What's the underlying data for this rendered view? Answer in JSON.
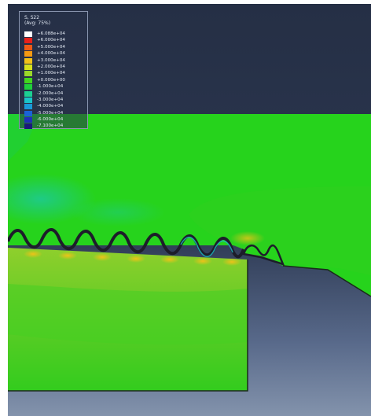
{
  "viewport": {
    "colors": {
      "background_top": "#252f45",
      "background_bottom": "#8393ac",
      "part_main": "#26d31c",
      "part_dark": "#159f14",
      "part_compression": "#7ccd2c",
      "part_tension": "#1cc8a8",
      "thread_profile": "#1d1d2a",
      "hot_spot": "#f2c218"
    }
  },
  "legend": {
    "variable": "S, S22",
    "averaging": "(Avg: 75%)",
    "entries": [
      {
        "value": "+6.088e+04",
        "color": "#ffffff"
      },
      {
        "value": "+6.000e+04",
        "color": "#e8201a"
      },
      {
        "value": "+5.000e+04",
        "color": "#ef5a16"
      },
      {
        "value": "+4.000e+04",
        "color": "#f49a12"
      },
      {
        "value": "+3.000e+04",
        "color": "#f2c218"
      },
      {
        "value": "+2.000e+04",
        "color": "#d6e11c"
      },
      {
        "value": "+1.000e+04",
        "color": "#9bd829"
      },
      {
        "value": "+0.000e+00",
        "color": "#44d51e"
      },
      {
        "value": "-1.000e+04",
        "color": "#1fcf3b"
      },
      {
        "value": "-2.000e+04",
        "color": "#1ccf92"
      },
      {
        "value": "-3.000e+04",
        "color": "#1ac3c8"
      },
      {
        "value": "-4.000e+04",
        "color": "#1a98d8"
      },
      {
        "value": "-5.000e+04",
        "color": "#1a63d6"
      },
      {
        "value": "-6.000e+04",
        "color": "#1f2fb8"
      },
      {
        "value": "-7.100e+04",
        "color": "#1a1a7a"
      }
    ]
  }
}
